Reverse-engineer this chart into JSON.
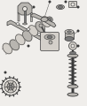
{
  "bg_color": "#f0eeeb",
  "dark": "#3a3a3a",
  "mid": "#7a7a7a",
  "light": "#b8b5b0",
  "lighter": "#d4d0ca",
  "white": "#e8e5e0",
  "figsize": [
    0.98,
    1.2
  ],
  "dpi": 100
}
